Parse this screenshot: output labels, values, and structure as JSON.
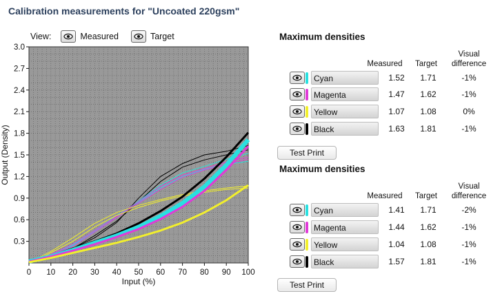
{
  "title": "Calibration measurements for \"Uncoated 220gsm\"",
  "view": {
    "label": "View:",
    "measured_label": "Measured",
    "target_label": "Target"
  },
  "chart_data": {
    "type": "line",
    "xlabel": "Input (%)",
    "ylabel": "Output (Density)",
    "xlim": [
      0,
      100
    ],
    "ylim": [
      0,
      3.0
    ],
    "x_ticks": [
      "0",
      "10",
      "20",
      "30",
      "40",
      "50",
      "60",
      "70",
      "80",
      "90",
      "100"
    ],
    "y_ticks": [
      "0.3",
      "0.6",
      "0.9",
      "1.2",
      "1.5",
      "1.8",
      "2.1",
      "2.4",
      "2.7",
      "3.0"
    ],
    "grid": true,
    "background": "#999999",
    "series": [
      {
        "color": "#000000",
        "style": "target",
        "x": [
          0,
          10,
          20,
          30,
          40,
          50,
          60,
          70,
          80,
          90,
          100
        ],
        "y": [
          0.02,
          0.1,
          0.2,
          0.3,
          0.41,
          0.55,
          0.72,
          0.92,
          1.17,
          1.47,
          1.81
        ]
      },
      {
        "color": "#29e0e0",
        "style": "target",
        "x": [
          0,
          10,
          20,
          30,
          40,
          50,
          60,
          70,
          80,
          90,
          100
        ],
        "y": [
          0.02,
          0.09,
          0.18,
          0.28,
          0.38,
          0.5,
          0.65,
          0.83,
          1.06,
          1.36,
          1.71
        ]
      },
      {
        "color": "#e03bd8",
        "style": "target",
        "x": [
          0,
          10,
          20,
          30,
          40,
          50,
          60,
          70,
          80,
          90,
          100
        ],
        "y": [
          0.02,
          0.09,
          0.17,
          0.26,
          0.36,
          0.47,
          0.61,
          0.78,
          1.0,
          1.29,
          1.62
        ]
      },
      {
        "color": "#f2ef2c",
        "style": "target",
        "x": [
          0,
          10,
          20,
          30,
          40,
          50,
          60,
          70,
          80,
          90,
          100
        ],
        "y": [
          0.01,
          0.07,
          0.14,
          0.21,
          0.28,
          0.36,
          0.45,
          0.56,
          0.7,
          0.87,
          1.08
        ]
      },
      {
        "color": "#000000",
        "style": "measured",
        "x": [
          0,
          5,
          10,
          20,
          30,
          40,
          50,
          60,
          70,
          80,
          90,
          100
        ],
        "y": [
          0.02,
          0.05,
          0.1,
          0.2,
          0.35,
          0.56,
          0.9,
          1.2,
          1.38,
          1.5,
          1.55,
          1.63
        ]
      },
      {
        "color": "#000000",
        "style": "measured",
        "x": [
          0,
          5,
          10,
          20,
          30,
          40,
          50,
          60,
          70,
          80,
          90,
          100
        ],
        "y": [
          0.02,
          0.04,
          0.08,
          0.2,
          0.38,
          0.58,
          0.85,
          1.13,
          1.33,
          1.43,
          1.5,
          1.57
        ]
      },
      {
        "color": "#29e0e0",
        "style": "measured",
        "x": [
          0,
          5,
          10,
          20,
          30,
          40,
          50,
          60,
          70,
          80,
          90,
          100
        ],
        "y": [
          0.02,
          0.05,
          0.12,
          0.25,
          0.44,
          0.63,
          0.86,
          1.08,
          1.25,
          1.34,
          1.44,
          1.52
        ]
      },
      {
        "color": "#29e0e0",
        "style": "measured",
        "x": [
          0,
          5,
          10,
          20,
          30,
          40,
          50,
          60,
          70,
          80,
          90,
          100
        ],
        "y": [
          0.02,
          0.05,
          0.1,
          0.24,
          0.45,
          0.66,
          0.84,
          1.04,
          1.2,
          1.3,
          1.37,
          1.41
        ]
      },
      {
        "color": "#e03bd8",
        "style": "measured",
        "x": [
          0,
          5,
          10,
          20,
          30,
          40,
          50,
          60,
          70,
          80,
          90,
          100
        ],
        "y": [
          0.02,
          0.06,
          0.12,
          0.26,
          0.45,
          0.65,
          0.85,
          1.06,
          1.22,
          1.31,
          1.4,
          1.47
        ]
      },
      {
        "color": "#e03bd8",
        "style": "measured",
        "x": [
          0,
          5,
          10,
          20,
          30,
          40,
          50,
          60,
          70,
          80,
          90,
          100
        ],
        "y": [
          0.02,
          0.05,
          0.11,
          0.23,
          0.43,
          0.63,
          0.83,
          1.02,
          1.19,
          1.29,
          1.37,
          1.44
        ]
      },
      {
        "color": "#f2ef2c",
        "style": "measured",
        "x": [
          0,
          5,
          10,
          20,
          30,
          40,
          50,
          60,
          70,
          80,
          90,
          100
        ],
        "y": [
          0.01,
          0.08,
          0.16,
          0.35,
          0.55,
          0.7,
          0.8,
          0.88,
          0.95,
          1.0,
          1.04,
          1.07
        ]
      },
      {
        "color": "#f2ef2c",
        "style": "measured",
        "x": [
          0,
          5,
          10,
          20,
          30,
          40,
          50,
          60,
          70,
          80,
          90,
          100
        ],
        "y": [
          0.01,
          0.06,
          0.14,
          0.3,
          0.5,
          0.66,
          0.77,
          0.86,
          0.93,
          0.98,
          1.02,
          1.04
        ]
      }
    ]
  },
  "panels": [
    {
      "title": "Maximum densities",
      "headers": {
        "measured": "Measured",
        "target": "Target",
        "visual_1": "Visual",
        "visual_2": "difference"
      },
      "rows": [
        {
          "name": "Cyan",
          "color": "#29e0e0",
          "measured": "1.52",
          "target": "1.71",
          "diff": "-1%"
        },
        {
          "name": "Magenta",
          "color": "#e03bd8",
          "measured": "1.47",
          "target": "1.62",
          "diff": "-1%"
        },
        {
          "name": "Yellow",
          "color": "#f2ef2c",
          "measured": "1.07",
          "target": "1.08",
          "diff": "0%"
        },
        {
          "name": "Black",
          "color": "#000000",
          "measured": "1.63",
          "target": "1.81",
          "diff": "-1%"
        }
      ],
      "button": "Test Print"
    },
    {
      "title": "Maximum densities",
      "headers": {
        "measured": "Measured",
        "target": "Target",
        "visual_1": "Visual",
        "visual_2": "difference"
      },
      "rows": [
        {
          "name": "Cyan",
          "color": "#29e0e0",
          "measured": "1.41",
          "target": "1.71",
          "diff": "-2%"
        },
        {
          "name": "Magenta",
          "color": "#e03bd8",
          "measured": "1.44",
          "target": "1.62",
          "diff": "-1%"
        },
        {
          "name": "Yellow",
          "color": "#f2ef2c",
          "measured": "1.04",
          "target": "1.08",
          "diff": "-1%"
        },
        {
          "name": "Black",
          "color": "#000000",
          "measured": "1.57",
          "target": "1.81",
          "diff": "-1%"
        }
      ],
      "button": "Test Print"
    }
  ]
}
